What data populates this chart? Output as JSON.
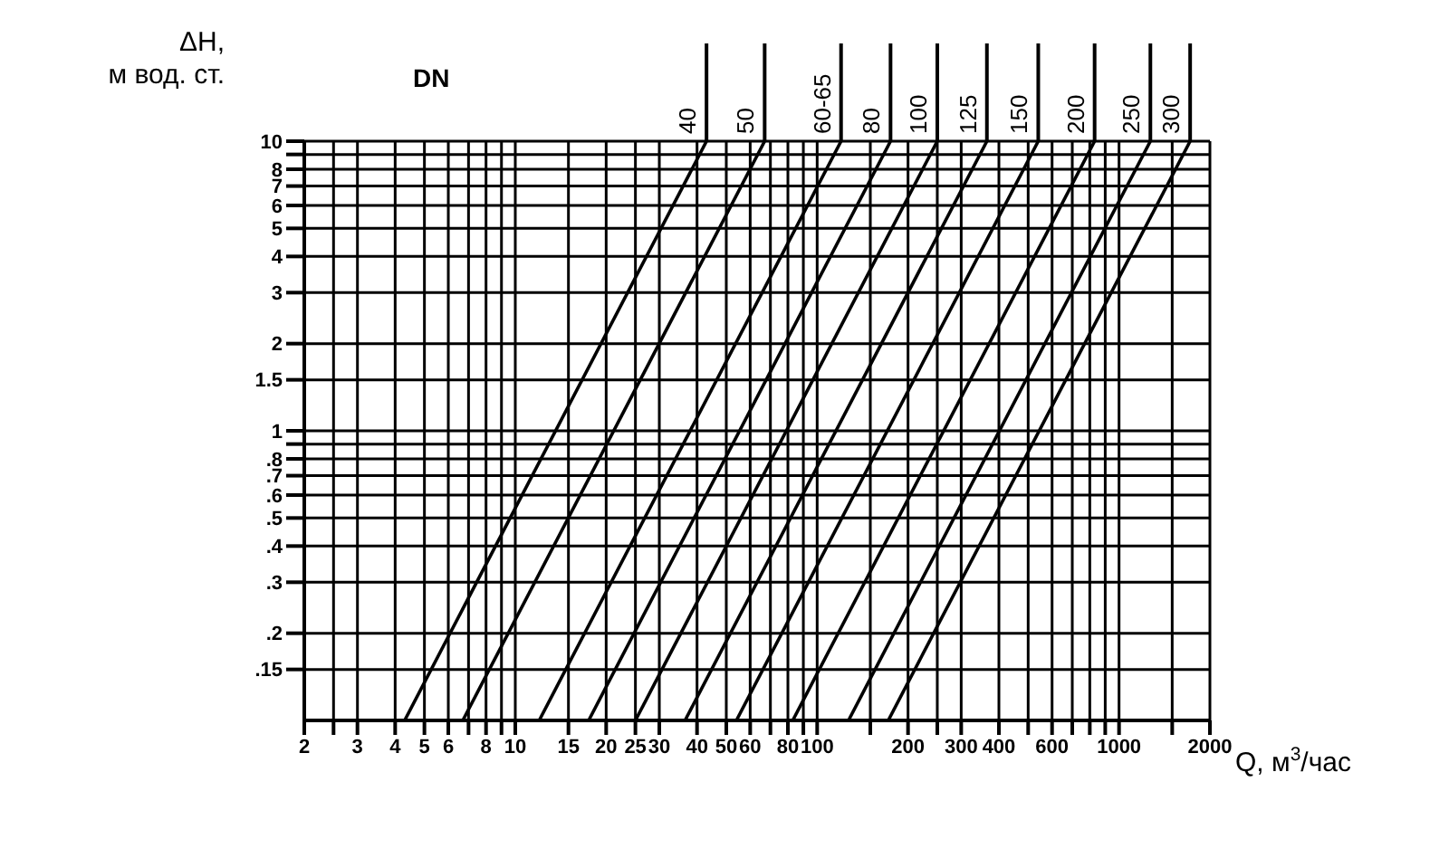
{
  "chart_data": {
    "type": "line",
    "xlabel": "Q, м$^{3}$/час",
    "ylabel": "ΔH,\nм вод. ст.",
    "annotations": [
      "DN"
    ],
    "log": "xy",
    "grid": true,
    "marker": "none",
    "line_style": "solid",
    "xlim": [
      2,
      2000
    ],
    "ylim": [
      0.1,
      10
    ],
    "xticks": [
      2,
      {
        "value": 2.5,
        "label": null
      },
      3,
      4,
      5,
      6,
      {
        "value": 7,
        "label": null
      },
      8,
      {
        "value": 9,
        "label": null
      },
      10,
      15,
      20,
      25,
      30,
      40,
      50,
      60,
      {
        "value": 70,
        "label": null
      },
      80,
      {
        "value": 90,
        "label": null
      },
      100,
      {
        "value": 150,
        "label": null
      },
      200,
      {
        "value": 250,
        "label": null
      },
      300,
      400,
      {
        "value": 500,
        "label": null
      },
      600,
      {
        "value": 700,
        "label": null
      },
      {
        "value": 800,
        "label": null
      },
      {
        "value": 900,
        "label": null
      },
      1000,
      {
        "value": 1500,
        "label": null
      },
      2000
    ],
    "yticks": [
      {
        "value": 0.15,
        "label": ".15"
      },
      {
        "value": 0.2,
        "label": ".2"
      },
      {
        "value": 0.3,
        "label": ".3"
      },
      {
        "value": 0.4,
        "label": ".4"
      },
      {
        "value": 0.5,
        "label": ".5"
      },
      {
        "value": 0.6,
        "label": ".6"
      },
      {
        "value": 0.7,
        "label": ".7"
      },
      {
        "value": 0.8,
        "label": ".8"
      },
      {
        "value": 0.9,
        "label": null
      },
      1,
      1.5,
      2,
      3,
      4,
      5,
      6,
      7,
      8,
      {
        "value": 9,
        "label": null
      },
      10
    ],
    "series": [
      {
        "name": "40",
        "color": "#000000",
        "x": [
          4.3,
          43
        ],
        "values": [
          0.1,
          10
        ]
      },
      {
        "name": "50",
        "color": "#000000",
        "x": [
          6.7,
          67
        ],
        "values": [
          0.1,
          10
        ]
      },
      {
        "name": "60-65",
        "color": "#000000",
        "x": [
          12,
          120
        ],
        "values": [
          0.1,
          10
        ]
      },
      {
        "name": "80",
        "color": "#000000",
        "x": [
          17.5,
          175
        ],
        "values": [
          0.1,
          10
        ]
      },
      {
        "name": "100",
        "color": "#000000",
        "x": [
          25,
          250
        ],
        "values": [
          0.1,
          10
        ]
      },
      {
        "name": "125",
        "color": "#000000",
        "x": [
          36.5,
          365
        ],
        "values": [
          0.1,
          10
        ]
      },
      {
        "name": "150",
        "color": "#000000",
        "x": [
          54,
          540
        ],
        "values": [
          0.1,
          10
        ]
      },
      {
        "name": "200",
        "color": "#000000",
        "x": [
          83,
          830
        ],
        "values": [
          0.1,
          10
        ]
      },
      {
        "name": "250",
        "color": "#000000",
        "x": [
          127,
          1270
        ],
        "values": [
          0.1,
          10
        ]
      },
      {
        "name": "300",
        "color": "#000000",
        "x": [
          172,
          1720
        ],
        "values": [
          0.1,
          10
        ]
      }
    ]
  }
}
